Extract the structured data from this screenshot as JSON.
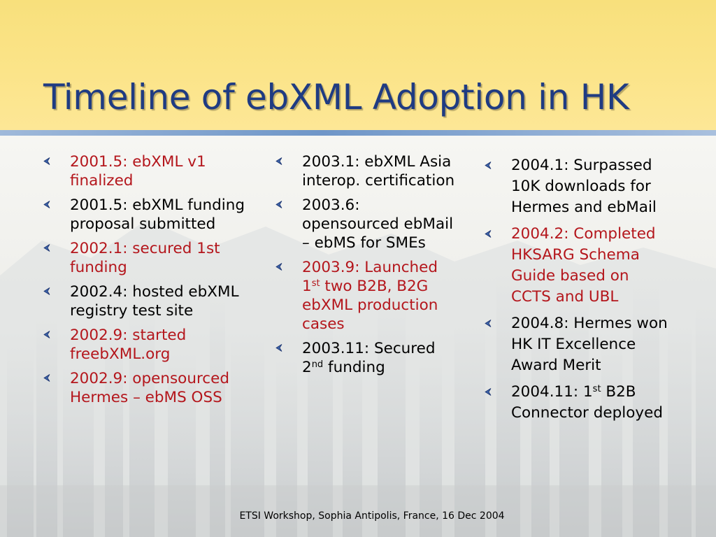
{
  "slide": {
    "title": "Timeline of ebXML Adoption in HK",
    "footer": "ETSI Workshop, Sophia Antipolis, France, 16 Dec 2004"
  },
  "colors": {
    "title": "#1f3b82",
    "highlight": "#b4161c",
    "bullet": "#3d63a8",
    "band": "#fbe489"
  },
  "columns": [
    {
      "items": [
        {
          "text": "2001.5: ebXML v1 finalized",
          "highlight": true
        },
        {
          "text": "2001.5: ebXML funding proposal submitted",
          "highlight": false
        },
        {
          "text": "2002.1: secured 1st funding",
          "highlight": true
        },
        {
          "text": "2002.4: hosted ebXML registry test site",
          "highlight": false
        },
        {
          "text": "2002.9: started freebXML.org",
          "highlight": true
        },
        {
          "text": "2002.9: opensourced Hermes – ebMS OSS",
          "highlight": true
        }
      ]
    },
    {
      "items": [
        {
          "text": "2003.1: ebXML Asia interop. certification",
          "highlight": false
        },
        {
          "text": "2003.6: opensourced ebMail – ebMS for SMEs",
          "highlight": false
        },
        {
          "pre": "2003.9: Launched 1",
          "sup": "st",
          "post": " two B2B, B2G ebXML production cases",
          "highlight": true
        },
        {
          "pre": "2003.11: Secured 2",
          "sup": "nd",
          "post": " funding",
          "highlight": false
        }
      ]
    },
    {
      "items": [
        {
          "text": "2004.1: Surpassed 10K downloads for Hermes and ebMail",
          "highlight": false
        },
        {
          "text": "2004.2: Completed HKSARG Schema Guide based on CCTS and UBL",
          "highlight": true
        },
        {
          "text": "2004.8: Hermes won HK IT Excellence Award Merit",
          "highlight": false
        },
        {
          "pre": "2004.11: 1",
          "sup": "st",
          "post": " B2B Connector deployed",
          "highlight": false
        }
      ]
    }
  ]
}
